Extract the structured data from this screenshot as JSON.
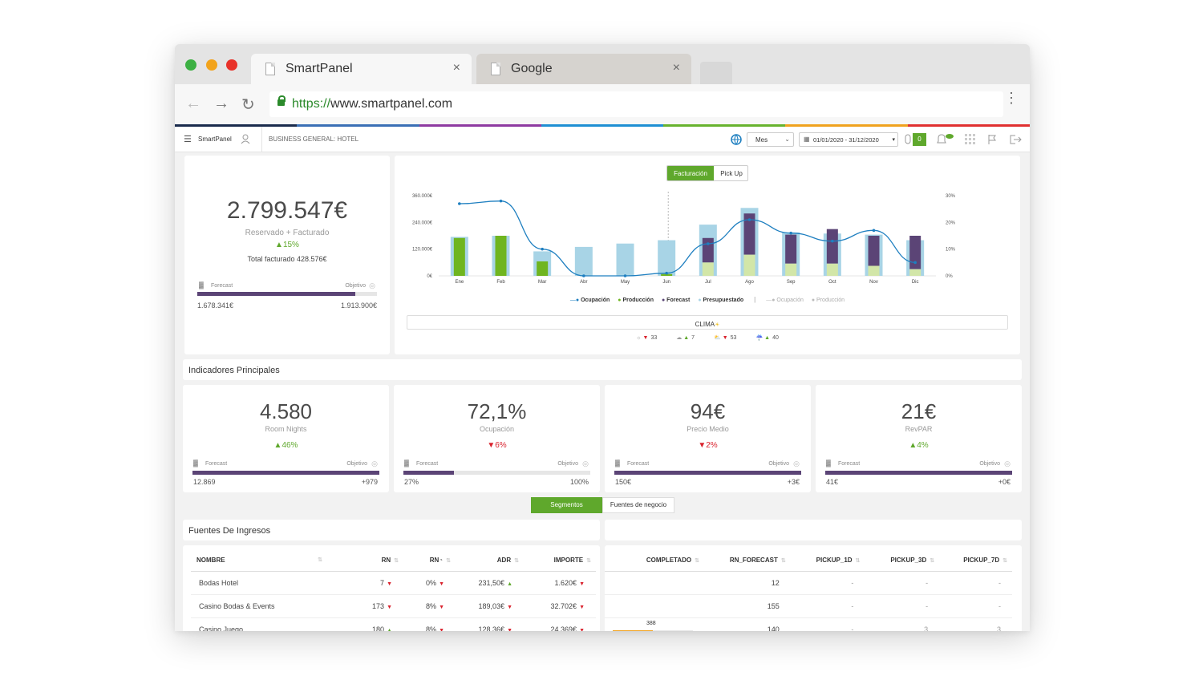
{
  "browser": {
    "tabs": [
      {
        "title": "SmartPanel",
        "close": "×"
      },
      {
        "title": "Google",
        "close": "×"
      }
    ],
    "url_protocol": "https://",
    "url_rest": "www.smartpanel.com",
    "rainbow_colors": [
      "#1a2b4c",
      "#3a6fb5",
      "#8e3aa1",
      "#1e8fd3",
      "#67b32e",
      "#f0a21e",
      "#e03030"
    ]
  },
  "topnav": {
    "brand": "SmartPanel",
    "business": "BUSINESS GENERAL: HOTEL",
    "period_select": "Mes",
    "date_range": "01/01/2020 - 31/12/2020",
    "badge_count": "0"
  },
  "summary": {
    "total": "2.799.547€",
    "label": "Reservado + Facturado",
    "pct": "15%",
    "invoiced": "Total facturado 428.576€",
    "forecast_label": "Forecast",
    "objective_label": "Objetivo",
    "forecast_value": "1.678.341€",
    "objective_value": "1.913.900€",
    "progress": 0.88
  },
  "chart_toggle": {
    "active": "Facturación",
    "inactive": "Pick Up"
  },
  "chart_data": {
    "type": "bar",
    "categories": [
      "Ene",
      "Feb",
      "Mar",
      "Abr",
      "May",
      "Jun",
      "Jul",
      "Ago",
      "Sep",
      "Oct",
      "Nov",
      "Dic"
    ],
    "y_left_ticks": [
      "360.000€",
      "240.000€",
      "120.000€",
      "0€"
    ],
    "y_right_ticks": [
      "30%",
      "20%",
      "10%",
      "0%"
    ],
    "ylim_left": [
      0,
      360000
    ],
    "ylim_right": [
      0,
      30
    ],
    "series": [
      {
        "name": "Presupuestado",
        "color": "#a8d4e6",
        "values": [
          175000,
          180000,
          110000,
          130000,
          145000,
          160000,
          230000,
          305000,
          195000,
          190000,
          185000,
          160000
        ]
      },
      {
        "name": "Producción",
        "color": "#6fb51f",
        "values": [
          170000,
          180000,
          65000,
          0,
          0,
          8000,
          60000,
          95000,
          55000,
          55000,
          45000,
          30000
        ]
      },
      {
        "name": "Forecast",
        "color": "#5b4476",
        "values": [
          0,
          0,
          0,
          0,
          0,
          0,
          110000,
          185000,
          130000,
          155000,
          135000,
          150000
        ]
      },
      {
        "name": "Ocupación",
        "color": "#1e7fc0",
        "values": [
          27,
          28,
          10,
          0,
          0,
          1,
          12,
          21,
          16,
          13,
          17,
          5
        ]
      }
    ],
    "legend": [
      "Ocupación",
      "Producción",
      "Forecast",
      "Presupuestado",
      "Ocupación",
      "Producción"
    ],
    "legend_colors": [
      "#1e7fc0",
      "#6fb51f",
      "#5b4476",
      "#a8d4e6",
      "#bbbbbb",
      "#bbbbbb"
    ],
    "legend_placement": "bottom",
    "grid": false
  },
  "weather": {
    "title": "CLIMA",
    "items": [
      {
        "icon": "sun-icon",
        "dir": "down",
        "value": "33"
      },
      {
        "icon": "cloud-icon",
        "dir": "up",
        "value": "7"
      },
      {
        "icon": "partly-cloudy-icon",
        "dir": "down",
        "value": "53"
      },
      {
        "icon": "rain-icon",
        "dir": "up",
        "value": "40"
      }
    ]
  },
  "indicators": {
    "title": "Indicadores Principales",
    "cards": [
      {
        "value": "4.580",
        "label": "Room Nights",
        "dir": "up",
        "pct": "46%",
        "forecast_label": "Forecast",
        "objective_label": "Objetivo",
        "left": "12.869",
        "right": "+979",
        "progress": 1.0
      },
      {
        "value": "72,1%",
        "label": "Ocupación",
        "dir": "down",
        "pct": "6%",
        "forecast_label": "Forecast",
        "objective_label": "Objetivo",
        "left": "27%",
        "right": "100%",
        "progress": 0.27
      },
      {
        "value": "94€",
        "label": "Precio Medio",
        "dir": "down",
        "pct": "2%",
        "forecast_label": "Forecast",
        "objective_label": "Objetivo",
        "left": "150€",
        "right": "+3€",
        "progress": 1.0
      },
      {
        "value": "21€",
        "label": "RevPAR",
        "dir": "up",
        "pct": "4%",
        "forecast_label": "Forecast",
        "objective_label": "Objetivo",
        "left": "41€",
        "right": "+0€",
        "progress": 1.0
      }
    ]
  },
  "segment_toggle": {
    "active": "Segmentos",
    "inactive": "Fuentes de negocio"
  },
  "revenue": {
    "title": "Fuentes De Ingresos",
    "left_headers": [
      "NOMBRE",
      "RN",
      "RN",
      "ADR",
      "IMPORTE"
    ],
    "rows": [
      {
        "name": "Bodas Hotel",
        "rn": "7",
        "rn_dir": "down",
        "rnpct": "0%",
        "rnpct_dir": "down",
        "adr": "231,50€",
        "adr_dir": "up",
        "importe": "1.620€",
        "importe_dir": "down"
      },
      {
        "name": "Casino Bodas & Events",
        "rn": "173",
        "rn_dir": "down",
        "rnpct": "8%",
        "rnpct_dir": "down",
        "adr": "189,03€",
        "adr_dir": "down",
        "importe": "32.702€",
        "importe_dir": "down"
      },
      {
        "name": "Casino Juego",
        "rn": "180",
        "rn_dir": "up",
        "rnpct": "8%",
        "rnpct_dir": "down",
        "adr": "128,36€",
        "adr_dir": "down",
        "importe": "24.369€",
        "importe_dir": "down"
      }
    ],
    "right_headers": [
      "COMPLETADO",
      "RN_FORECAST",
      "PICKUP_1D",
      "PICKUP_3D",
      "PICKUP_7D"
    ],
    "right_rows": [
      {
        "completado": "",
        "rn_forecast": "12",
        "p1": "-",
        "p3": "-",
        "p7": "-"
      },
      {
        "completado": "",
        "rn_forecast": "155",
        "p1": "-",
        "p3": "-",
        "p7": "-"
      },
      {
        "completado": "388",
        "rn_forecast": "140",
        "p1": "-",
        "p3": "3",
        "p7": "3"
      }
    ]
  }
}
